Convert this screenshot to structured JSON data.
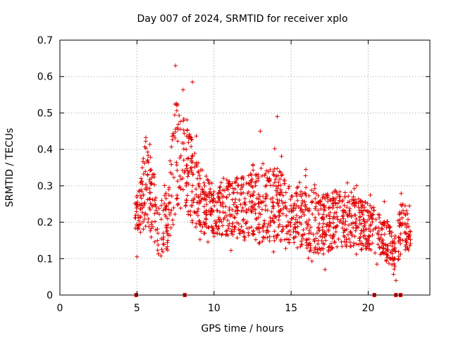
{
  "chart_data": {
    "type": "scatter",
    "title": "Day 007 of 2024, SRMTID for receiver xplo",
    "xlabel": "GPS time / hours",
    "ylabel": "SRMTID / TECUs",
    "xlim": [
      0,
      24
    ],
    "ylim": [
      0,
      0.7
    ],
    "x_ticks": [
      0,
      5,
      10,
      15,
      20
    ],
    "x_tick_labels": [
      "0",
      "5",
      "10",
      "15",
      "20"
    ],
    "y_ticks": [
      0,
      0.1,
      0.2,
      0.3,
      0.4,
      0.5,
      0.6,
      0.7
    ],
    "y_tick_labels": [
      "0",
      "0.1",
      "0.2",
      "0.3",
      "0.4",
      "0.5",
      "0.6",
      "0.7"
    ],
    "grid": true,
    "marker": "+",
    "color": "#e00000",
    "series": [
      {
        "name": "SRMTID",
        "envelope": [
          {
            "x": 4.9,
            "low": 0.18,
            "high": 0.26,
            "spread": 0.06
          },
          {
            "x": 5.2,
            "low": 0.17,
            "high": 0.3,
            "spread": 0.07
          },
          {
            "x": 5.6,
            "low": 0.19,
            "high": 0.45,
            "spread": 0.08
          },
          {
            "x": 6.0,
            "low": 0.15,
            "high": 0.36,
            "spread": 0.07
          },
          {
            "x": 6.5,
            "low": 0.1,
            "high": 0.25,
            "spread": 0.05
          },
          {
            "x": 7.0,
            "low": 0.13,
            "high": 0.3,
            "spread": 0.06
          },
          {
            "x": 7.5,
            "low": 0.22,
            "high": 0.55,
            "spread": 0.09
          },
          {
            "x": 8.0,
            "low": 0.24,
            "high": 0.5,
            "spread": 0.08
          },
          {
            "x": 8.5,
            "low": 0.2,
            "high": 0.45,
            "spread": 0.08
          },
          {
            "x": 9.0,
            "low": 0.17,
            "high": 0.36,
            "spread": 0.07
          },
          {
            "x": 10.0,
            "low": 0.16,
            "high": 0.3,
            "spread": 0.06
          },
          {
            "x": 11.0,
            "low": 0.16,
            "high": 0.32,
            "spread": 0.06
          },
          {
            "x": 12.0,
            "low": 0.15,
            "high": 0.33,
            "spread": 0.06
          },
          {
            "x": 12.5,
            "low": 0.15,
            "high": 0.38,
            "spread": 0.07
          },
          {
            "x": 13.0,
            "low": 0.14,
            "high": 0.33,
            "spread": 0.06
          },
          {
            "x": 14.0,
            "low": 0.15,
            "high": 0.36,
            "spread": 0.07
          },
          {
            "x": 15.0,
            "low": 0.14,
            "high": 0.3,
            "spread": 0.06
          },
          {
            "x": 16.0,
            "low": 0.12,
            "high": 0.3,
            "spread": 0.06
          },
          {
            "x": 17.0,
            "low": 0.11,
            "high": 0.28,
            "spread": 0.06
          },
          {
            "x": 18.0,
            "low": 0.13,
            "high": 0.3,
            "spread": 0.06
          },
          {
            "x": 19.0,
            "low": 0.13,
            "high": 0.27,
            "spread": 0.05
          },
          {
            "x": 20.0,
            "low": 0.12,
            "high": 0.26,
            "spread": 0.05
          },
          {
            "x": 21.0,
            "low": 0.1,
            "high": 0.22,
            "spread": 0.05
          },
          {
            "x": 21.7,
            "low": 0.07,
            "high": 0.17,
            "spread": 0.04
          },
          {
            "x": 22.2,
            "low": 0.12,
            "high": 0.28,
            "spread": 0.05
          },
          {
            "x": 22.7,
            "low": 0.12,
            "high": 0.21,
            "spread": 0.04
          }
        ],
        "x_range": [
          4.85,
          22.75
        ],
        "gaps": [
          [
            6.45,
            6.55
          ],
          [
            21.78,
            21.9
          ]
        ],
        "notable_points": [
          {
            "x": 7.5,
            "y": 0.63
          },
          {
            "x": 8.6,
            "y": 0.585
          },
          {
            "x": 14.1,
            "y": 0.49
          },
          {
            "x": 13.0,
            "y": 0.45
          },
          {
            "x": 5.0,
            "y": 0.105
          },
          {
            "x": 17.2,
            "y": 0.07
          },
          {
            "x": 21.8,
            "y": 0.04
          }
        ]
      }
    ],
    "zero_markers_x": [
      4.95,
      8.1,
      20.4,
      21.8,
      22.1
    ]
  }
}
